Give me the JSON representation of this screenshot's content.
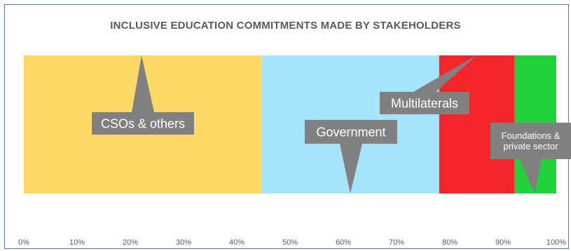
{
  "chart_data": {
    "type": "bar",
    "orientation": "horizontal-stacked-100",
    "title": "INCLUSIVE EDUCATION COMMITMENTS MADE BY STAKEHOLDERS",
    "xlim": [
      0,
      100
    ],
    "x_ticks": [
      "0%",
      "10%",
      "20%",
      "30%",
      "40%",
      "50%",
      "60%",
      "70%",
      "80%",
      "90%",
      "100%"
    ],
    "series": [
      {
        "name": "CSOs & others",
        "value": 44.7,
        "color": "#ffd966"
      },
      {
        "name": "Government",
        "value": 33.3,
        "color": "#a6e4fb"
      },
      {
        "name": "Multilaterals",
        "value": 14.2,
        "color": "#f5262b"
      },
      {
        "name": "Foundations & private sector",
        "value": 7.8,
        "color": "#22d23a"
      }
    ],
    "callout_labels": [
      [
        "CSOs & others"
      ],
      [
        "Government"
      ],
      [
        "Multilaterals"
      ],
      [
        "Foundations &",
        "private sector"
      ]
    ],
    "grid": false,
    "legend": "none"
  }
}
